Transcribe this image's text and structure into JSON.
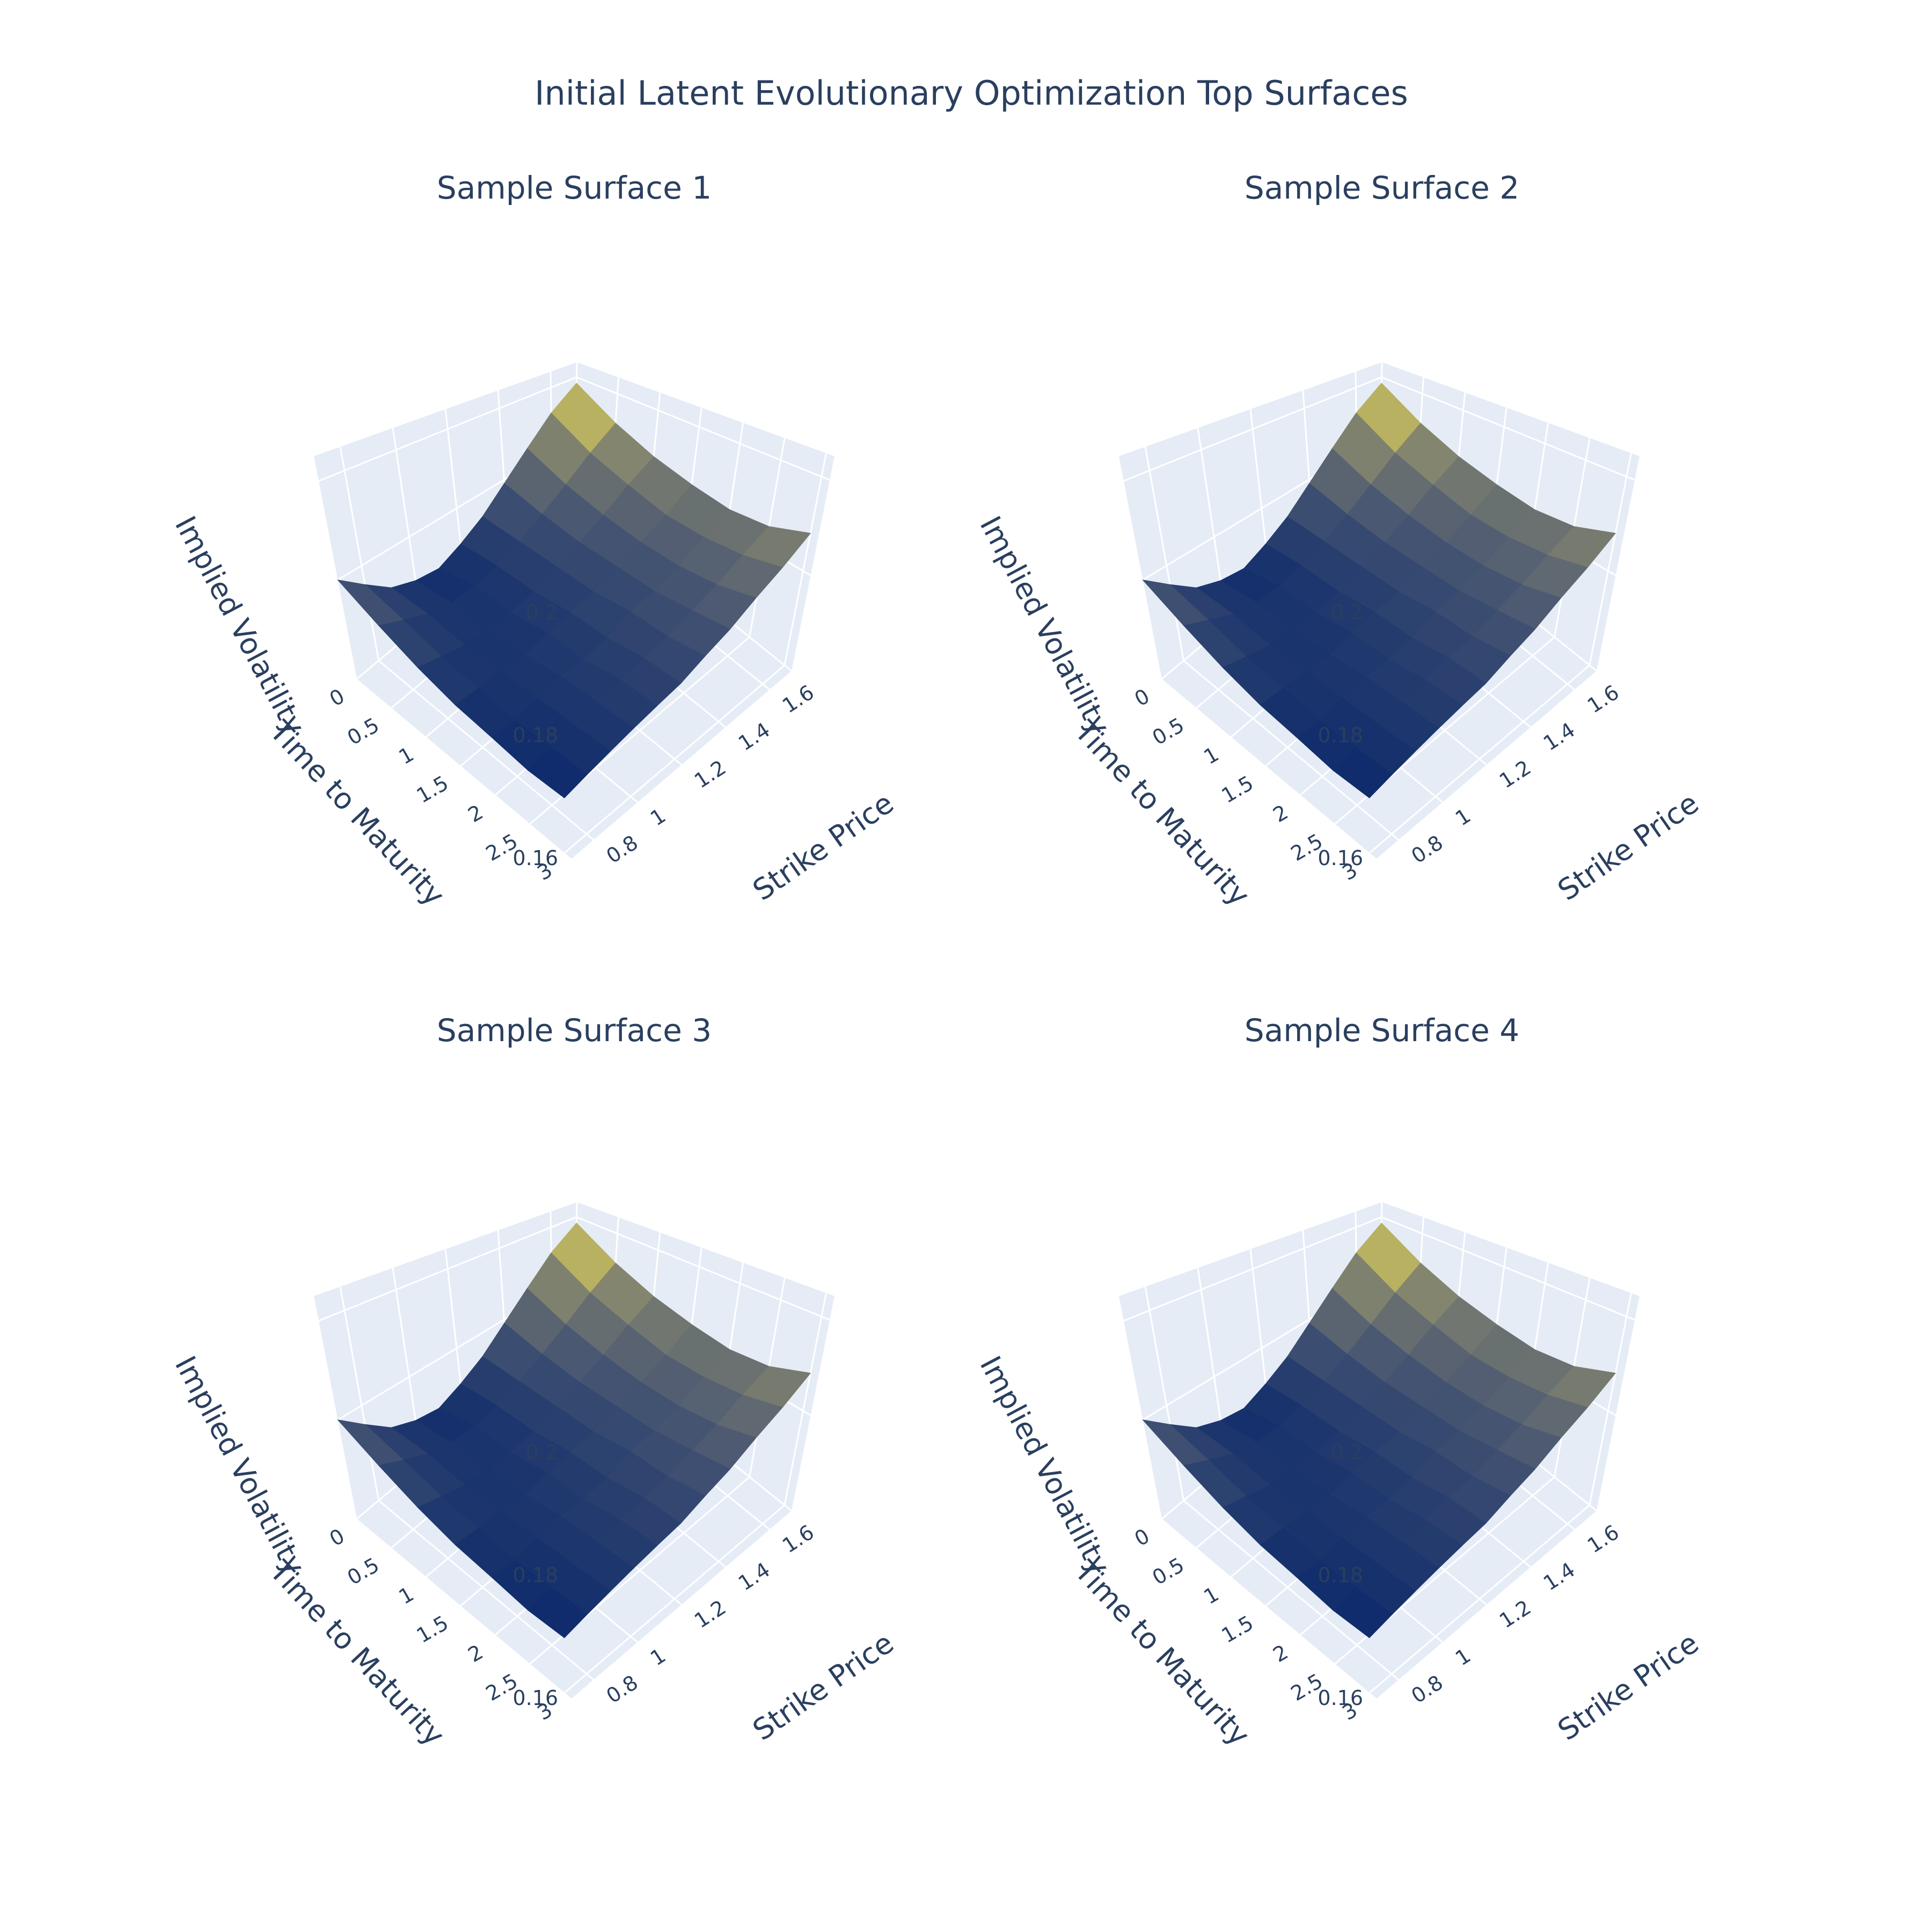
{
  "chart_data": {
    "type": "surface3d",
    "title": "Initial Latent Evolutionary Optimization Top Surfaces",
    "colorscale": [
      "#0d2a6c",
      "#4d5a72",
      "#8f8d6e",
      "#fff24a"
    ],
    "background": {
      "scene_bg": "#e5ecf6",
      "grid": "#ffffff",
      "text": "#2a3f5f"
    },
    "axes": {
      "x": {
        "title": "Strike Price",
        "ticks": [
          "0.8",
          "1",
          "1.2",
          "1.4",
          "1.6"
        ],
        "tick_values": [
          0.8,
          1.0,
          1.2,
          1.4,
          1.6
        ],
        "range": [
          0.7,
          1.7
        ]
      },
      "y": {
        "title": "Time to Maturity",
        "ticks": [
          "0",
          "0.5",
          "1",
          "1.5",
          "2",
          "2.5",
          "3"
        ],
        "tick_values": [
          0,
          0.5,
          1,
          1.5,
          2,
          2.5,
          3
        ],
        "range": [
          0,
          3.1
        ]
      },
      "z": {
        "title": "Implied Volatility",
        "ticks": [
          "0.16",
          "0.18",
          "0.2"
        ],
        "tick_values": [
          0.16,
          0.18,
          0.2
        ],
        "range": [
          0.16,
          0.205
        ]
      }
    },
    "strike_grid": [
      0.7,
      0.8,
      0.9,
      1.0,
      1.1,
      1.2,
      1.3,
      1.4,
      1.5,
      1.6,
      1.7
    ],
    "maturity_grid": [
      0.0,
      0.5,
      1.0,
      1.5,
      2.0,
      2.5,
      3.0
    ],
    "subplots": [
      {
        "title": "Sample Surface 1",
        "z": [
          [
            0.18,
            0.176,
            0.172,
            0.17,
            0.169,
            0.171,
            0.174,
            0.179,
            0.185,
            0.192,
            0.198
          ],
          [
            0.176,
            0.174,
            0.172,
            0.171,
            0.171,
            0.172,
            0.174,
            0.177,
            0.181,
            0.186,
            0.191
          ],
          [
            0.173,
            0.172,
            0.171,
            0.171,
            0.171,
            0.172,
            0.174,
            0.176,
            0.179,
            0.183,
            0.187
          ],
          [
            0.171,
            0.171,
            0.171,
            0.171,
            0.172,
            0.173,
            0.174,
            0.176,
            0.178,
            0.181,
            0.185
          ],
          [
            0.17,
            0.17,
            0.171,
            0.172,
            0.172,
            0.173,
            0.175,
            0.176,
            0.178,
            0.181,
            0.184
          ],
          [
            0.169,
            0.17,
            0.171,
            0.172,
            0.173,
            0.174,
            0.175,
            0.177,
            0.179,
            0.182,
            0.185
          ],
          [
            0.169,
            0.17,
            0.171,
            0.172,
            0.173,
            0.174,
            0.176,
            0.178,
            0.181,
            0.184,
            0.188
          ]
        ]
      },
      {
        "title": "Sample Surface 2",
        "z": [
          [
            0.18,
            0.176,
            0.172,
            0.17,
            0.169,
            0.171,
            0.174,
            0.179,
            0.185,
            0.192,
            0.198
          ],
          [
            0.176,
            0.174,
            0.172,
            0.171,
            0.171,
            0.172,
            0.174,
            0.177,
            0.181,
            0.186,
            0.191
          ],
          [
            0.173,
            0.172,
            0.171,
            0.171,
            0.171,
            0.172,
            0.174,
            0.176,
            0.179,
            0.183,
            0.187
          ],
          [
            0.171,
            0.171,
            0.171,
            0.171,
            0.172,
            0.173,
            0.174,
            0.176,
            0.178,
            0.181,
            0.185
          ],
          [
            0.17,
            0.17,
            0.171,
            0.172,
            0.172,
            0.173,
            0.175,
            0.176,
            0.178,
            0.181,
            0.184
          ],
          [
            0.169,
            0.17,
            0.171,
            0.172,
            0.173,
            0.174,
            0.175,
            0.177,
            0.179,
            0.182,
            0.185
          ],
          [
            0.169,
            0.17,
            0.171,
            0.172,
            0.173,
            0.174,
            0.176,
            0.178,
            0.181,
            0.184,
            0.188
          ]
        ]
      },
      {
        "title": "Sample Surface 3",
        "z": [
          [
            0.18,
            0.176,
            0.172,
            0.17,
            0.169,
            0.171,
            0.174,
            0.179,
            0.185,
            0.192,
            0.198
          ],
          [
            0.176,
            0.174,
            0.172,
            0.171,
            0.171,
            0.172,
            0.174,
            0.177,
            0.181,
            0.186,
            0.191
          ],
          [
            0.173,
            0.172,
            0.171,
            0.171,
            0.171,
            0.172,
            0.174,
            0.176,
            0.179,
            0.183,
            0.187
          ],
          [
            0.171,
            0.171,
            0.171,
            0.171,
            0.172,
            0.173,
            0.174,
            0.176,
            0.178,
            0.181,
            0.185
          ],
          [
            0.17,
            0.17,
            0.171,
            0.172,
            0.172,
            0.173,
            0.175,
            0.176,
            0.178,
            0.181,
            0.184
          ],
          [
            0.169,
            0.17,
            0.171,
            0.172,
            0.173,
            0.174,
            0.175,
            0.177,
            0.179,
            0.182,
            0.185
          ],
          [
            0.169,
            0.17,
            0.171,
            0.172,
            0.173,
            0.174,
            0.176,
            0.178,
            0.181,
            0.184,
            0.188
          ]
        ]
      },
      {
        "title": "Sample Surface 4",
        "z": [
          [
            0.18,
            0.176,
            0.172,
            0.17,
            0.169,
            0.171,
            0.174,
            0.179,
            0.185,
            0.192,
            0.198
          ],
          [
            0.176,
            0.174,
            0.172,
            0.171,
            0.171,
            0.172,
            0.174,
            0.177,
            0.181,
            0.186,
            0.191
          ],
          [
            0.173,
            0.172,
            0.171,
            0.171,
            0.171,
            0.172,
            0.174,
            0.176,
            0.179,
            0.183,
            0.187
          ],
          [
            0.171,
            0.171,
            0.171,
            0.171,
            0.172,
            0.173,
            0.174,
            0.176,
            0.178,
            0.181,
            0.185
          ],
          [
            0.17,
            0.17,
            0.171,
            0.172,
            0.172,
            0.173,
            0.175,
            0.176,
            0.178,
            0.181,
            0.184
          ],
          [
            0.169,
            0.17,
            0.171,
            0.172,
            0.173,
            0.174,
            0.175,
            0.177,
            0.179,
            0.182,
            0.185
          ],
          [
            0.169,
            0.17,
            0.171,
            0.172,
            0.173,
            0.174,
            0.176,
            0.178,
            0.181,
            0.184,
            0.188
          ]
        ]
      }
    ]
  }
}
